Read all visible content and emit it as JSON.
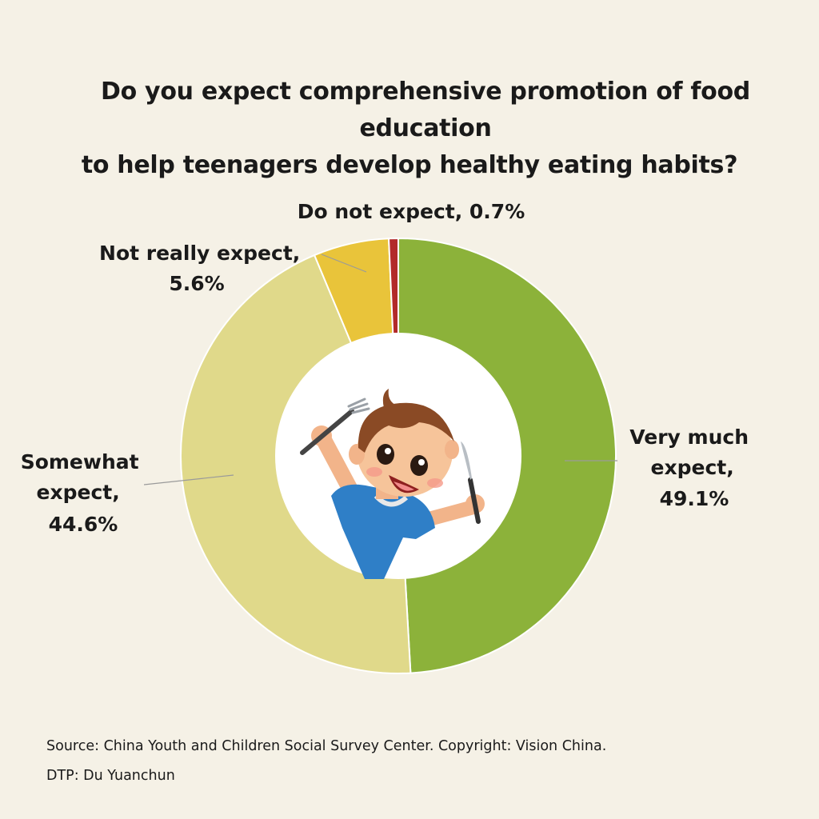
{
  "chart_data": {
    "type": "pie",
    "variant": "donut",
    "title_lines": [
      "Do you expect comprehensive promotion of food education",
      "to help teenagers develop healthy eating habits?"
    ],
    "slices": [
      {
        "name": "Very much expect",
        "value": 49.1,
        "color": "#8cb23a",
        "label_lines": [
          "Very much",
          "expect,",
          "49.1%"
        ]
      },
      {
        "name": "Somewhat expect",
        "value": 44.6,
        "color": "#e0d98a",
        "label_lines": [
          "Somewhat",
          "expect,",
          "44.6%"
        ]
      },
      {
        "name": "Not really expect",
        "value": 5.6,
        "color": "#e9c43a",
        "label_lines": [
          "Not really expect,",
          "5.6%"
        ]
      },
      {
        "name": "Do not expect",
        "value": 0.7,
        "color": "#b22a2a",
        "label_lines": [
          "Do not expect, 0.7%"
        ]
      }
    ],
    "unit": "%"
  },
  "footer": {
    "source": "Source: China Youth and Children Social Survey Center. Copyright: Vision China.",
    "dtp": "DTP: Du Yuanchun"
  },
  "illustration": {
    "icon": "child-with-fork-and-knife-icon"
  }
}
